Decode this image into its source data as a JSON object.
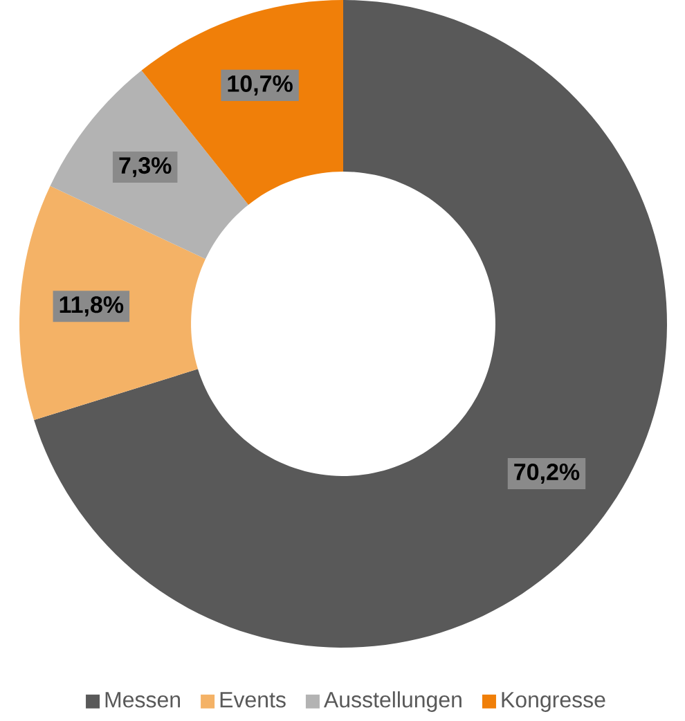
{
  "chart_data": {
    "type": "donut",
    "categories": [
      "Messen",
      "Events",
      "Ausstellungen",
      "Kongresse"
    ],
    "values": [
      70.2,
      11.8,
      7.3,
      10.7
    ],
    "colors": [
      "#595959",
      "#f4b266",
      "#b3b3b3",
      "#f07f09"
    ],
    "value_labels": [
      "70,2%",
      "11,8%",
      "7,3%",
      "10,7%"
    ],
    "legend": "bottom"
  }
}
